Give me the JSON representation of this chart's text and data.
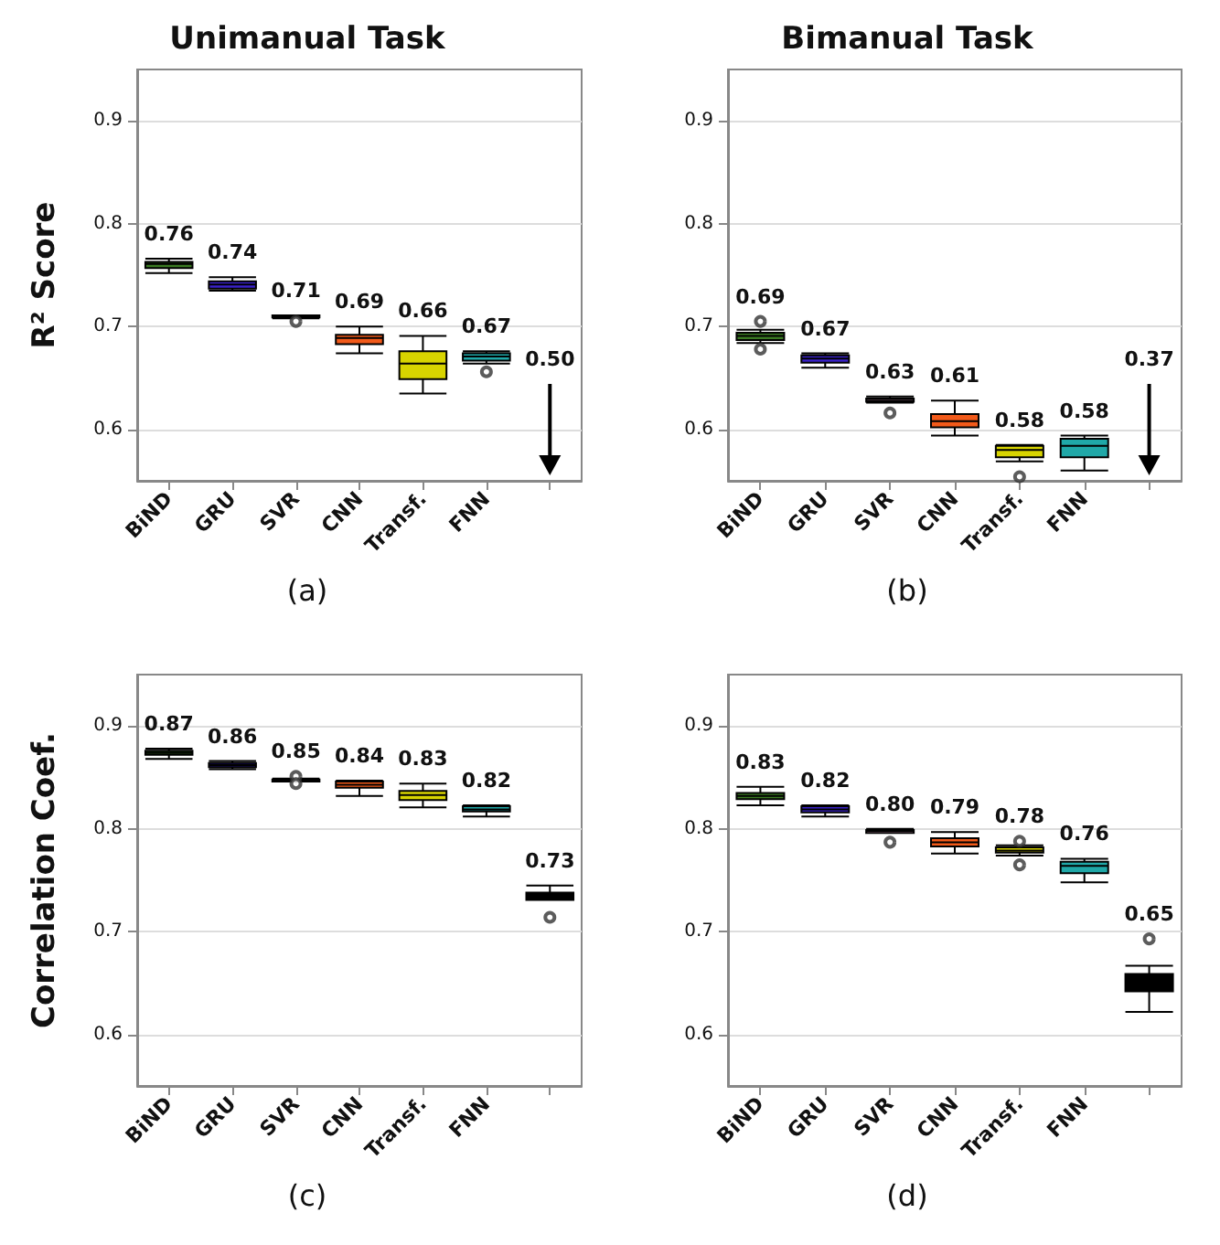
{
  "chart_data": [
    {
      "type": "box",
      "title": "Unimanual Task",
      "ylabel": "R² Score",
      "categories": [
        "BiND",
        "GRU",
        "SVR",
        "CNN",
        "Transf.",
        "FNN",
        null
      ],
      "ylim": [
        0.55,
        0.95
      ],
      "yticks": [
        0.6,
        0.7,
        0.8,
        0.9
      ],
      "grid": "y",
      "annotations": [
        "(a)"
      ],
      "colors": [
        "#3a7a22",
        "#3a22c8",
        "#e8a8c8",
        "#f25a1a",
        "#d8d400",
        "#20a8a8",
        "#000000"
      ],
      "value_labels": [
        "0.76",
        "0.74",
        "0.71",
        "0.69",
        "0.66",
        "0.67",
        "0.50"
      ],
      "boxes": [
        {
          "low": 0.752,
          "q1": 0.757,
          "median": 0.761,
          "q3": 0.763,
          "high": 0.766
        },
        {
          "low": 0.735,
          "q1": 0.737,
          "median": 0.741,
          "q3": 0.744,
          "high": 0.748
        },
        {
          "low": 0.708,
          "q1": 0.709,
          "median": 0.71,
          "q3": 0.711,
          "high": 0.711,
          "outliers": [
            0.705
          ]
        },
        {
          "low": 0.674,
          "q1": 0.683,
          "median": 0.689,
          "q3": 0.692,
          "high": 0.7
        },
        {
          "low": 0.635,
          "q1": 0.649,
          "median": 0.664,
          "q3": 0.676,
          "high": 0.691
        },
        {
          "low": 0.664,
          "q1": 0.667,
          "median": 0.671,
          "q3": 0.674,
          "high": 0.676,
          "outliers": [
            0.656
          ]
        },
        null
      ]
    },
    {
      "type": "box",
      "title": "Bimanual Task",
      "categories": [
        "BiND",
        "GRU",
        "SVR",
        "CNN",
        "Transf.",
        "FNN",
        null
      ],
      "ylim": [
        0.55,
        0.95
      ],
      "yticks": [
        0.6,
        0.7,
        0.8,
        0.9
      ],
      "grid": "y",
      "annotations": [
        "(b)"
      ],
      "colors": [
        "#3a7a22",
        "#3a22c8",
        "#e8a8c8",
        "#f25a1a",
        "#d8d400",
        "#20a8a8",
        "#000000"
      ],
      "value_labels": [
        "0.69",
        "0.67",
        "0.63",
        "0.61",
        "0.58",
        "0.58",
        "0.37"
      ],
      "boxes": [
        {
          "low": 0.684,
          "q1": 0.687,
          "median": 0.691,
          "q3": 0.694,
          "high": 0.697,
          "outliers": [
            0.705,
            0.678
          ]
        },
        {
          "low": 0.66,
          "q1": 0.665,
          "median": 0.669,
          "q3": 0.672,
          "high": 0.674
        },
        {
          "low": 0.626,
          "q1": 0.627,
          "median": 0.628,
          "q3": 0.63,
          "high": 0.632,
          "outliers": [
            0.616
          ]
        },
        {
          "low": 0.594,
          "q1": 0.602,
          "median": 0.608,
          "q3": 0.615,
          "high": 0.628
        },
        {
          "low": 0.569,
          "q1": 0.573,
          "median": 0.58,
          "q3": 0.584,
          "high": 0.585,
          "outliers": [
            0.554
          ]
        },
        {
          "low": 0.56,
          "q1": 0.573,
          "median": 0.584,
          "q3": 0.591,
          "high": 0.594
        },
        null
      ]
    },
    {
      "type": "box",
      "ylabel": "Correlation Coef.",
      "categories": [
        "BiND",
        "GRU",
        "SVR",
        "CNN",
        "Transf.",
        "FNN",
        null
      ],
      "ylim": [
        0.55,
        0.95
      ],
      "yticks": [
        0.6,
        0.7,
        0.8,
        0.9
      ],
      "grid": "y",
      "annotations": [
        "(c)"
      ],
      "colors": [
        "#3a7a22",
        "#3a22c8",
        "#e8a8c8",
        "#f25a1a",
        "#d8d400",
        "#20a8a8",
        "#000000"
      ],
      "value_labels": [
        "0.87",
        "0.86",
        "0.85",
        "0.84",
        "0.83",
        "0.82",
        "0.73"
      ],
      "boxes": [
        {
          "low": 0.868,
          "q1": 0.872,
          "median": 0.874,
          "q3": 0.876,
          "high": 0.878
        },
        {
          "low": 0.858,
          "q1": 0.86,
          "median": 0.862,
          "q3": 0.864,
          "high": 0.866
        },
        {
          "low": 0.846,
          "q1": 0.846,
          "median": 0.847,
          "q3": 0.848,
          "high": 0.849,
          "outliers": [
            0.851,
            0.844
          ]
        },
        {
          "low": 0.832,
          "q1": 0.84,
          "median": 0.843,
          "q3": 0.846,
          "high": 0.847
        },
        {
          "low": 0.821,
          "q1": 0.828,
          "median": 0.833,
          "q3": 0.837,
          "high": 0.844
        },
        {
          "low": 0.812,
          "q1": 0.817,
          "median": 0.819,
          "q3": 0.822,
          "high": 0.823
        },
        {
          "low": 0.731,
          "q1": 0.731,
          "median": 0.735,
          "q3": 0.738,
          "high": 0.745,
          "outliers": [
            0.714
          ]
        }
      ]
    },
    {
      "type": "box",
      "categories": [
        "BiND",
        "GRU",
        "SVR",
        "CNN",
        "Transf.",
        "FNN",
        null
      ],
      "ylim": [
        0.55,
        0.95
      ],
      "yticks": [
        0.6,
        0.7,
        0.8,
        0.9
      ],
      "grid": "y",
      "annotations": [
        "(d)"
      ],
      "colors": [
        "#3a7a22",
        "#3a22c8",
        "#e8a8c8",
        "#f25a1a",
        "#d8d400",
        "#20a8a8",
        "#000000"
      ],
      "value_labels": [
        "0.83",
        "0.82",
        "0.80",
        "0.79",
        "0.78",
        "0.76",
        "0.65"
      ],
      "boxes": [
        {
          "low": 0.823,
          "q1": 0.829,
          "median": 0.832,
          "q3": 0.835,
          "high": 0.841
        },
        {
          "low": 0.812,
          "q1": 0.816,
          "median": 0.819,
          "q3": 0.822,
          "high": 0.823
        },
        {
          "low": 0.796,
          "q1": 0.796,
          "median": 0.798,
          "q3": 0.799,
          "high": 0.8,
          "outliers": [
            0.787
          ]
        },
        {
          "low": 0.776,
          "q1": 0.783,
          "median": 0.787,
          "q3": 0.791,
          "high": 0.797
        },
        {
          "low": 0.774,
          "q1": 0.777,
          "median": 0.779,
          "q3": 0.782,
          "high": 0.784,
          "outliers": [
            0.788,
            0.765
          ]
        },
        {
          "low": 0.748,
          "q1": 0.757,
          "median": 0.764,
          "q3": 0.768,
          "high": 0.771
        },
        {
          "low": 0.622,
          "q1": 0.642,
          "median": 0.651,
          "q3": 0.659,
          "high": 0.667,
          "outliers": [
            0.693
          ]
        }
      ]
    }
  ]
}
